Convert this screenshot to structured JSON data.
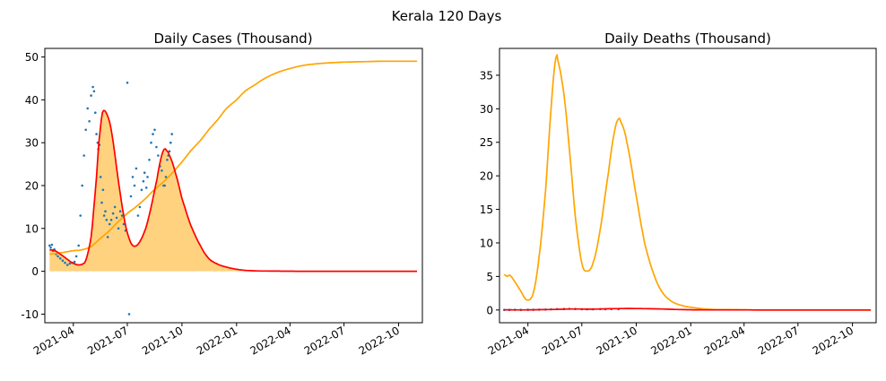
{
  "suptitle": "Kerala 120 Days",
  "colors": {
    "scatter": "#1f77b4",
    "fit": "#ff0000",
    "cumulative": "#ffa500",
    "fill": "#ffa500"
  },
  "chart_data": [
    {
      "type": "line",
      "title": "Daily Cases (Thousand)",
      "xlabel": "",
      "ylabel": "",
      "x_range": [
        "2021-02-12",
        "2022-11-10"
      ],
      "xticks": [
        "2021-04",
        "2021-07",
        "2021-10",
        "2022-01",
        "2022-04",
        "2022-07",
        "2022-10"
      ],
      "xtick_dates": [
        "2021-04-01",
        "2021-07-01",
        "2021-10-01",
        "2022-01-01",
        "2022-04-01",
        "2022-07-01",
        "2022-10-01"
      ],
      "ylim": [
        -12,
        52
      ],
      "yticks": [
        -10,
        0,
        10,
        20,
        30,
        40,
        50
      ],
      "grid": false,
      "series": [
        {
          "role": "fit",
          "style": "line",
          "color": "#ff0000",
          "x": [
            "2021-02-20",
            "2021-03-01",
            "2021-03-10",
            "2021-03-20",
            "2021-03-30",
            "2021-04-10",
            "2021-04-20",
            "2021-04-25",
            "2021-05-01",
            "2021-05-05",
            "2021-05-10",
            "2021-05-14",
            "2021-05-20",
            "2021-05-28",
            "2021-06-05",
            "2021-06-15",
            "2021-06-25",
            "2021-07-02",
            "2021-07-10",
            "2021-07-20",
            "2021-08-01",
            "2021-08-10",
            "2021-08-20",
            "2021-08-26",
            "2021-09-01",
            "2021-09-05",
            "2021-09-10",
            "2021-09-20",
            "2021-10-01",
            "2021-10-15",
            "2021-11-01",
            "2021-11-15",
            "2021-12-01",
            "2021-12-20",
            "2022-01-10",
            "2022-02-01",
            "2022-03-01",
            "2022-05-01",
            "2022-07-01",
            "2022-09-01",
            "2022-11-01"
          ],
          "y": [
            5.0,
            4.8,
            4.0,
            3.0,
            2.0,
            1.5,
            2.0,
            4.0,
            8.0,
            14.0,
            22.0,
            30.0,
            37.0,
            36.5,
            32.0,
            22.0,
            13.0,
            8.5,
            6.0,
            6.5,
            10.0,
            15.0,
            21.5,
            26.0,
            28.5,
            28.2,
            27.0,
            23.0,
            17.0,
            11.0,
            6.0,
            3.0,
            1.6,
            0.8,
            0.3,
            0.1,
            0.05,
            0.0,
            0.0,
            0.0,
            0.0
          ]
        },
        {
          "role": "cumulative",
          "style": "line-fill",
          "color": "#ffa500",
          "x": [
            "2021-02-20",
            "2021-03-15",
            "2021-04-01",
            "2021-04-15",
            "2021-05-01",
            "2021-05-15",
            "2021-06-01",
            "2021-06-15",
            "2021-07-01",
            "2021-07-15",
            "2021-08-01",
            "2021-08-15",
            "2021-09-01",
            "2021-09-15",
            "2021-10-01",
            "2021-10-15",
            "2021-11-01",
            "2021-11-15",
            "2021-12-01",
            "2021-12-15",
            "2022-01-01",
            "2022-01-15",
            "2022-02-01",
            "2022-02-15",
            "2022-03-01",
            "2022-03-15",
            "2022-04-01",
            "2022-04-15",
            "2022-05-01",
            "2022-05-15",
            "2022-06-01",
            "2022-07-01",
            "2022-08-01",
            "2022-09-01",
            "2022-10-01",
            "2022-11-01"
          ],
          "y": [
            4.0,
            4.4,
            4.8,
            5.0,
            5.8,
            7.5,
            9.5,
            11.5,
            13.5,
            15.0,
            17.0,
            19.0,
            21.0,
            23.0,
            25.5,
            28.0,
            30.5,
            33.0,
            35.5,
            38.0,
            40.0,
            42.0,
            43.5,
            44.8,
            45.8,
            46.6,
            47.3,
            47.8,
            48.2,
            48.4,
            48.6,
            48.8,
            48.9,
            49.0,
            49.0,
            49.0
          ]
        },
        {
          "role": "observed",
          "style": "scatter",
          "color": "#1f77b4",
          "x": [
            "2021-02-20",
            "2021-02-22",
            "2021-02-24",
            "2021-02-26",
            "2021-02-28",
            "2021-03-03",
            "2021-03-06",
            "2021-03-10",
            "2021-03-14",
            "2021-03-18",
            "2021-03-22",
            "2021-03-26",
            "2021-03-30",
            "2021-04-03",
            "2021-04-06",
            "2021-04-10",
            "2021-04-13",
            "2021-04-16",
            "2021-04-19",
            "2021-04-22",
            "2021-04-25",
            "2021-04-28",
            "2021-05-01",
            "2021-05-04",
            "2021-05-06",
            "2021-05-08",
            "2021-05-10",
            "2021-05-12",
            "2021-05-13",
            "2021-05-15",
            "2021-05-17",
            "2021-05-19",
            "2021-05-21",
            "2021-05-23",
            "2021-05-25",
            "2021-05-27",
            "2021-05-29",
            "2021-06-01",
            "2021-06-04",
            "2021-06-07",
            "2021-06-10",
            "2021-06-13",
            "2021-06-16",
            "2021-06-19",
            "2021-06-22",
            "2021-06-25",
            "2021-06-28",
            "2021-07-01",
            "2021-07-04",
            "2021-07-07",
            "2021-07-10",
            "2021-07-13",
            "2021-07-16",
            "2021-07-19",
            "2021-07-22",
            "2021-07-25",
            "2021-07-28",
            "2021-07-30",
            "2021-08-02",
            "2021-08-04",
            "2021-08-07",
            "2021-08-10",
            "2021-08-13",
            "2021-08-16",
            "2021-08-19",
            "2021-08-22",
            "2021-08-25",
            "2021-08-28",
            "2021-08-31",
            "2021-09-02",
            "2021-09-04",
            "2021-09-06",
            "2021-09-08",
            "2021-09-10",
            "2021-09-12",
            "2021-09-14"
          ],
          "y": [
            6.0,
            5.5,
            6.2,
            4.8,
            5.1,
            4.0,
            3.5,
            3.0,
            2.5,
            2.0,
            1.5,
            1.8,
            2.0,
            2.2,
            3.5,
            6.0,
            13.0,
            20.0,
            27.0,
            33.0,
            38.0,
            35.0,
            41.0,
            43.0,
            42.0,
            37.0,
            32.0,
            30.0,
            28.5,
            29.5,
            22.0,
            16.0,
            19.0,
            13.0,
            14.0,
            12.0,
            8.0,
            11.0,
            12.0,
            13.5,
            15.0,
            12.5,
            10.0,
            14.0,
            13.0,
            11.0,
            9.5,
            44.0,
            -10.0,
            17.5,
            22.0,
            20.0,
            24.0,
            13.0,
            15.0,
            19.0,
            21.0,
            23.0,
            19.5,
            22.0,
            26.0,
            30.0,
            32.0,
            33.0,
            29.0,
            27.0,
            24.5,
            23.5,
            20.0,
            20.0,
            22.0,
            26.0,
            27.0,
            28.0,
            30.0,
            32.0
          ]
        }
      ]
    },
    {
      "type": "line",
      "title": "Daily Deaths (Thousand)",
      "xlabel": "",
      "ylabel": "",
      "x_range": [
        "2021-02-12",
        "2022-11-10"
      ],
      "xticks": [
        "2021-04",
        "2021-07",
        "2021-10",
        "2022-01",
        "2022-04",
        "2022-07",
        "2022-10"
      ],
      "xtick_dates": [
        "2021-04-01",
        "2021-07-01",
        "2021-10-01",
        "2022-01-01",
        "2022-04-01",
        "2022-07-01",
        "2022-10-01"
      ],
      "ylim": [
        -1.9,
        39
      ],
      "yticks": [
        0,
        5,
        10,
        15,
        20,
        25,
        30,
        35
      ],
      "grid": false,
      "series": [
        {
          "role": "cases-curve",
          "style": "line",
          "color": "#ffa500",
          "x": [
            "2021-02-20",
            "2021-02-25",
            "2021-03-01",
            "2021-03-10",
            "2021-03-20",
            "2021-03-30",
            "2021-04-10",
            "2021-04-20",
            "2021-05-01",
            "2021-05-10",
            "2021-05-18",
            "2021-05-22",
            "2021-06-01",
            "2021-06-10",
            "2021-06-20",
            "2021-07-01",
            "2021-07-10",
            "2021-07-20",
            "2021-08-01",
            "2021-08-15",
            "2021-08-25",
            "2021-09-01",
            "2021-09-05",
            "2021-09-15",
            "2021-10-01",
            "2021-10-15",
            "2021-11-01",
            "2021-11-15",
            "2021-12-01",
            "2021-12-20",
            "2022-01-10",
            "2022-02-01",
            "2022-03-01",
            "2022-05-01",
            "2022-07-01",
            "2022-09-01",
            "2022-11-01"
          ],
          "y": [
            5.3,
            5.0,
            5.2,
            4.2,
            2.8,
            1.5,
            2.5,
            8.0,
            18.0,
            30.0,
            37.5,
            37.0,
            32.0,
            24.0,
            14.0,
            7.0,
            5.8,
            7.0,
            12.0,
            20.5,
            26.5,
            28.5,
            28.0,
            25.0,
            17.0,
            10.0,
            5.0,
            2.5,
            1.2,
            0.6,
            0.3,
            0.1,
            0.05,
            0.0,
            0.0,
            0.0,
            0.0
          ]
        },
        {
          "role": "fit",
          "style": "line",
          "color": "#ff0000",
          "x": [
            "2021-02-20",
            "2021-04-01",
            "2021-05-15",
            "2021-06-15",
            "2021-07-15",
            "2021-08-15",
            "2021-09-15",
            "2021-10-15",
            "2021-11-15",
            "2021-12-15",
            "2022-01-15",
            "2022-03-01",
            "2022-06-01",
            "2022-11-01"
          ],
          "y": [
            0.02,
            0.02,
            0.08,
            0.15,
            0.12,
            0.18,
            0.22,
            0.2,
            0.14,
            0.06,
            0.02,
            0.01,
            0.0,
            0.0
          ]
        },
        {
          "role": "observed",
          "style": "scatter",
          "color": "#1f77b4",
          "x": [
            "2021-02-20",
            "2021-03-01",
            "2021-03-10",
            "2021-03-20",
            "2021-04-01",
            "2021-04-10",
            "2021-04-20",
            "2021-05-01",
            "2021-05-10",
            "2021-05-20",
            "2021-06-01",
            "2021-06-10",
            "2021-06-20",
            "2021-07-01",
            "2021-07-10",
            "2021-07-20",
            "2021-08-01",
            "2021-08-10",
            "2021-08-20",
            "2021-09-01"
          ],
          "y": [
            0.01,
            0.01,
            0.02,
            0.01,
            0.02,
            0.03,
            0.05,
            0.07,
            0.1,
            0.13,
            0.15,
            0.17,
            0.14,
            0.12,
            0.1,
            0.11,
            0.13,
            0.12,
            0.15,
            0.12
          ]
        }
      ]
    }
  ]
}
